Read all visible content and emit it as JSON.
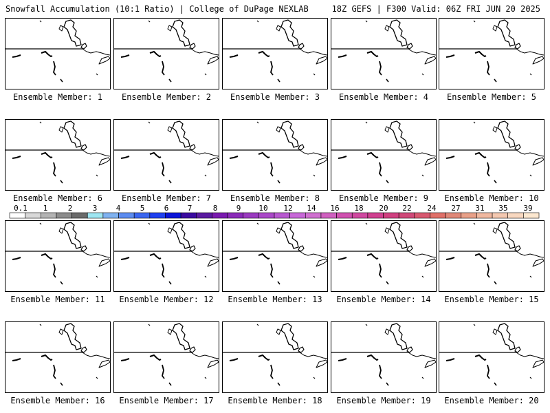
{
  "header": {
    "left_title": "Snowfall Accumulation (10:1 Ratio) | College of DuPage NEXLAB",
    "right_title": "18Z GEFS | F300 Valid: 06Z FRI JUN 20 2025"
  },
  "member_label_prefix": "Ensemble Member:",
  "members": [
    {
      "id": "1"
    },
    {
      "id": "2"
    },
    {
      "id": "3"
    },
    {
      "id": "4"
    },
    {
      "id": "5"
    },
    {
      "id": "6"
    },
    {
      "id": "7"
    },
    {
      "id": "8"
    },
    {
      "id": "9"
    },
    {
      "id": "10"
    },
    {
      "id": "11"
    },
    {
      "id": "12"
    },
    {
      "id": "13"
    },
    {
      "id": "14"
    },
    {
      "id": "15"
    },
    {
      "id": "16"
    },
    {
      "id": "17"
    },
    {
      "id": "18"
    },
    {
      "id": "19"
    },
    {
      "id": "20"
    }
  ],
  "colorbar": {
    "ticks": [
      "0.1",
      "1",
      "2",
      "3",
      "4",
      "5",
      "6",
      "7",
      "8",
      "9",
      "10",
      "12",
      "14",
      "16",
      "18",
      "20",
      "22",
      "24",
      "27",
      "31",
      "35",
      "39"
    ],
    "colors": [
      "#ffffff",
      "#d9d9d9",
      "#b3b3b3",
      "#8c8c8c",
      "#6b6b6b",
      "#9fe6f2",
      "#7fb2f0",
      "#5c8cf0",
      "#3a66f0",
      "#1e40f0",
      "#0a14d8",
      "#3a0aa0",
      "#5a1aa0",
      "#7a1ab0",
      "#8a2ab8",
      "#9a3ac0",
      "#aa48c8",
      "#b858d0",
      "#c868d8",
      "#d070d0",
      "#d060c0",
      "#d050b0",
      "#d048a0",
      "#d04090",
      "#d04080",
      "#d04878",
      "#d85870",
      "#e07068",
      "#e08878",
      "#e8a088",
      "#f0b8a0",
      "#f4c8b0",
      "#f8d8c0",
      "#fce8d0"
    ]
  }
}
